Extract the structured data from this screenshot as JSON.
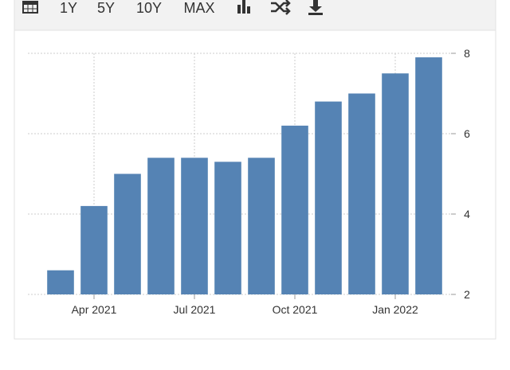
{
  "toolbar": [
    "1Y",
    "5Y",
    "10Y",
    "MAX"
  ],
  "chart_data": {
    "type": "bar",
    "categories": [
      null,
      "Apr 2021",
      null,
      null,
      "Jul 2021",
      null,
      null,
      "Oct 2021",
      null,
      null,
      "Jan 2022",
      null
    ],
    "values": [
      2.6,
      4.2,
      5.0,
      5.4,
      5.4,
      5.3,
      5.4,
      6.2,
      6.8,
      7.0,
      7.5,
      7.9
    ],
    "color": "#5583b4",
    "ylim": [
      2,
      8
    ],
    "yticks": [
      2,
      4,
      6,
      8
    ],
    "grid": true,
    "y_axis_side": "right"
  }
}
